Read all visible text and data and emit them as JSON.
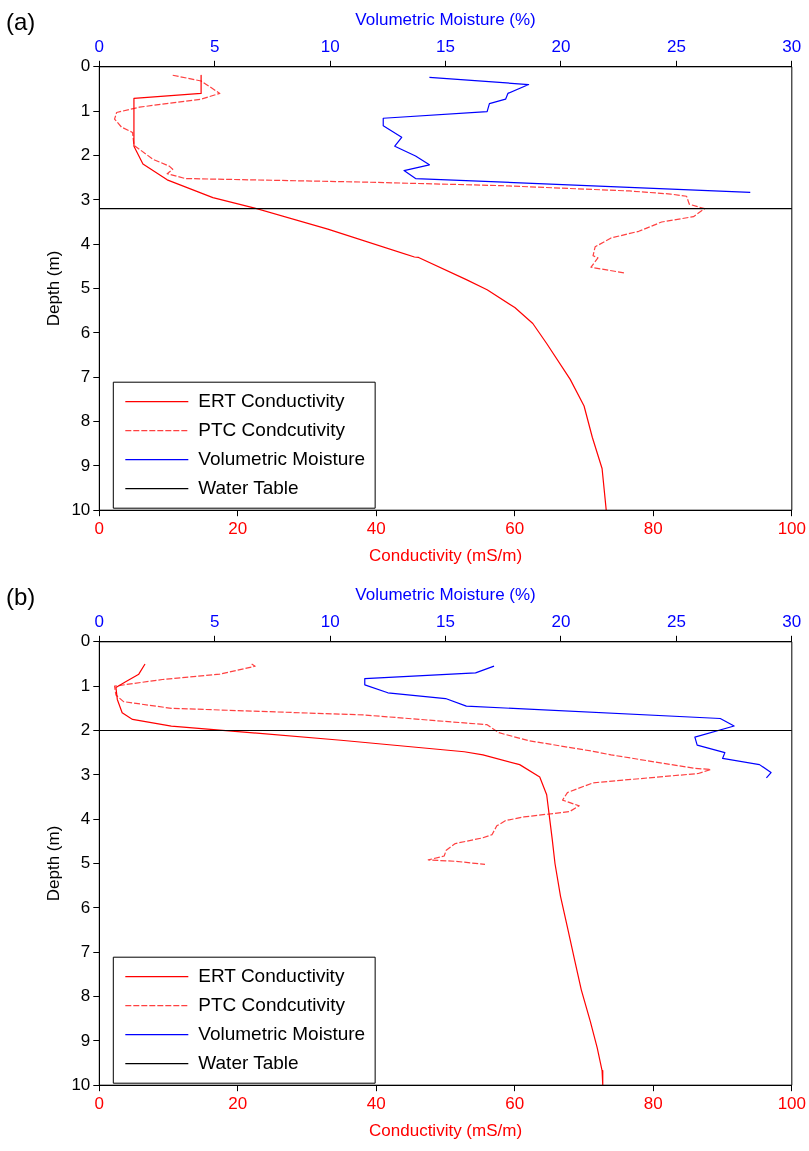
{
  "chart_data": [
    {
      "type": "line",
      "title": "(a)",
      "xlabel": "Conductivity (mS/m)",
      "x2label": "Volumetric Moisture (%)",
      "ylabel": "Depth (m)",
      "xlim": [
        0,
        100
      ],
      "xticks": [
        0,
        20,
        40,
        60,
        80,
        100
      ],
      "x2lim": [
        0,
        30
      ],
      "x2ticks": [
        0,
        5,
        10,
        15,
        20,
        25,
        30
      ],
      "ylim": [
        10,
        0
      ],
      "yticks": [
        0,
        1,
        2,
        3,
        4,
        5,
        6,
        7,
        8,
        9,
        10
      ],
      "legend": "bottom left",
      "grid": false,
      "marker": "none",
      "series": [
        {
          "name": "ERT Conductivity",
          "color": "#ff0000",
          "line_style": "solid",
          "x": [
            14.7,
            14.7,
            5.0,
            5.0,
            6.3,
            9.8,
            16.4,
            22.3,
            33,
            45.5,
            46.1,
            53,
            56,
            60,
            62.6,
            64.6,
            68,
            70,
            71.2,
            72.6,
            73.2
          ],
          "values": [
            0.19,
            0.6,
            0.71,
            1.79,
            2.19,
            2.55,
            2.95,
            3.18,
            3.66,
            4.29,
            4.3,
            4.8,
            5.03,
            5.43,
            5.79,
            6.24,
            7.05,
            7.65,
            8.36,
            9.06,
            10
          ]
        },
        {
          "name": "PTC Condcutivity",
          "color": "#ff4040",
          "line_style": "dashed",
          "x": [
            10.6,
            14.7,
            17.4,
            14.7,
            5.8,
            2.5,
            2.2,
            3.2,
            4.8,
            5.0,
            7.8,
            10.1,
            10.6,
            9.8,
            12.4,
            38.2,
            58,
            76.5,
            82.5,
            84.8,
            85.2,
            87.4,
            85.8,
            81.2,
            77.9,
            73.9,
            71.6,
            71.3,
            72,
            71,
            75.9
          ],
          "values": [
            0.19,
            0.32,
            0.6,
            0.73,
            0.91,
            1.03,
            1.18,
            1.36,
            1.48,
            1.77,
            2.09,
            2.24,
            2.31,
            2.41,
            2.52,
            2.6,
            2.68,
            2.8,
            2.87,
            2.92,
            3.1,
            3.2,
            3.38,
            3.5,
            3.71,
            3.86,
            4.06,
            4.26,
            4.31,
            4.52,
            4.65
          ]
        },
        {
          "name": "Volumetric Moisture",
          "color": "#0000ff",
          "line_style": "solid",
          "axis": "x2",
          "x": [
            14.3,
            18.6,
            17.7,
            17.6,
            16.9,
            16.8,
            12.3,
            12.3,
            13.1,
            12.8,
            13.7,
            14.3,
            13.2,
            13.7,
            28.2
          ],
          "values": [
            0.24,
            0.4,
            0.6,
            0.73,
            0.83,
            1.01,
            1.16,
            1.33,
            1.59,
            1.79,
            2.01,
            2.21,
            2.34,
            2.52,
            2.83
          ]
        }
      ],
      "ref_lines": [
        {
          "axis": "y",
          "value": 3.2,
          "label": "Water Table",
          "color": "#000000"
        }
      ]
    },
    {
      "type": "line",
      "title": "(b)",
      "xlabel": "Conductivity (mS/m)",
      "x2label": "Volumetric Moisture (%)",
      "ylabel": "Depth (m)",
      "xlim": [
        0,
        100
      ],
      "xticks": [
        0,
        20,
        40,
        60,
        80,
        100
      ],
      "x2lim": [
        0,
        30
      ],
      "x2ticks": [
        0,
        5,
        10,
        15,
        20,
        25,
        30
      ],
      "ylim": [
        10,
        0
      ],
      "yticks": [
        0,
        1,
        2,
        3,
        4,
        5,
        6,
        7,
        8,
        9,
        10
      ],
      "legend": "bottom left",
      "grid": false,
      "marker": "none",
      "series": [
        {
          "name": "ERT Conductivity",
          "color": "#ff0000",
          "line_style": "solid",
          "x": [
            6.6,
            5.7,
            3.8,
            2.4,
            2.6,
            3.3,
            4.8,
            10.4,
            34.9,
            52.7,
            55.4,
            60.7,
            63.6,
            64.6,
            65,
            65.4,
            65.8,
            66.6,
            67.6,
            68.6,
            69.6,
            70.9,
            71.9,
            72.6,
            72.7
          ],
          "values": [
            0.5,
            0.73,
            0.9,
            1.03,
            1.3,
            1.6,
            1.75,
            1.9,
            2.22,
            2.48,
            2.55,
            2.77,
            3.05,
            3.45,
            3.95,
            4.45,
            5.0,
            5.74,
            6.44,
            7.15,
            7.85,
            8.56,
            9.16,
            9.67,
            10
          ]
        },
        {
          "name": "PTC Condcutivity",
          "color": "#ff4040",
          "line_style": "dashed",
          "x": [
            22,
            22.5,
            17.4,
            9.1,
            2.2,
            2.4,
            3.5,
            10.4,
            38.2,
            56,
            57.7,
            62,
            71.3,
            73.9,
            85.8,
            88.3,
            86.5,
            71.3,
            67.6,
            66.9,
            69.3,
            67.9,
            61.3,
            58.7,
            57.4,
            56.7,
            55.4,
            51.4,
            50.1,
            49.8,
            47.5,
            51.4,
            55.7
          ],
          "values": [
            0.5,
            0.55,
            0.73,
            0.85,
            1.0,
            1.2,
            1.35,
            1.5,
            1.65,
            1.87,
            2.05,
            2.23,
            2.47,
            2.55,
            2.85,
            2.88,
            2.97,
            3.18,
            3.4,
            3.57,
            3.7,
            3.83,
            3.95,
            4.03,
            4.15,
            4.35,
            4.42,
            4.55,
            4.7,
            4.83,
            4.92,
            4.95,
            5.02
          ]
        },
        {
          "name": "Volumetric Moisture",
          "color": "#0000ff",
          "line_style": "solid",
          "axis": "x2",
          "x": [
            17.1,
            16.3,
            11.5,
            11.5,
            12.5,
            15,
            15.9,
            26.9,
            27.5,
            25.8,
            25.9,
            27.1,
            27,
            28.6,
            29.1,
            28.9
          ],
          "values": [
            0.55,
            0.7,
            0.83,
            0.97,
            1.15,
            1.28,
            1.45,
            1.73,
            1.9,
            2.15,
            2.33,
            2.5,
            2.63,
            2.77,
            2.95,
            3.07
          ]
        }
      ],
      "ref_lines": [
        {
          "axis": "y",
          "value": 2.0,
          "label": "Water Table",
          "color": "#000000"
        }
      ]
    }
  ]
}
